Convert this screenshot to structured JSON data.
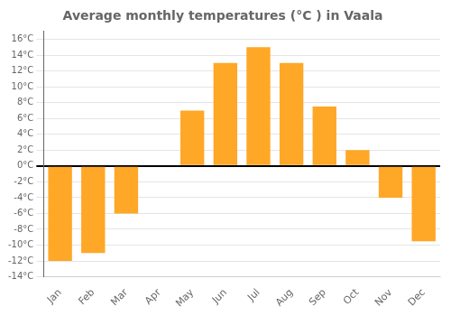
{
  "chart_data": {
    "type": "bar",
    "title": "Average monthly temperatures (°C ) in Vaala",
    "categories": [
      "Jan",
      "Feb",
      "Mar",
      "Apr",
      "May",
      "Jun",
      "Jul",
      "Aug",
      "Sep",
      "Oct",
      "Nov",
      "Dec"
    ],
    "values": [
      -12,
      -11,
      -6,
      0,
      7,
      13,
      15,
      13,
      7.5,
      2,
      -4,
      -9.5
    ],
    "color": "#FFA726",
    "ylim": [
      -14,
      17
    ],
    "yticks": [
      {
        "value": -14,
        "label": "-14°C"
      },
      {
        "value": -12,
        "label": "-12°C"
      },
      {
        "value": -10,
        "label": "-10°C"
      },
      {
        "value": -8,
        "label": "-8°C"
      },
      {
        "value": -6,
        "label": "-6°C"
      },
      {
        "value": -4,
        "label": "-4°C"
      },
      {
        "value": -2,
        "label": "-2°C"
      },
      {
        "value": 0,
        "label": "0°C"
      },
      {
        "value": 2,
        "label": "2°C"
      },
      {
        "value": 4,
        "label": "4°C"
      },
      {
        "value": 6,
        "label": "6°C"
      },
      {
        "value": 8,
        "label": "8°C"
      },
      {
        "value": 10,
        "label": "10°C"
      },
      {
        "value": 12,
        "label": "12°C"
      },
      {
        "value": 14,
        "label": "14°C"
      },
      {
        "value": 16,
        "label": "16°C"
      }
    ],
    "grid": true
  }
}
